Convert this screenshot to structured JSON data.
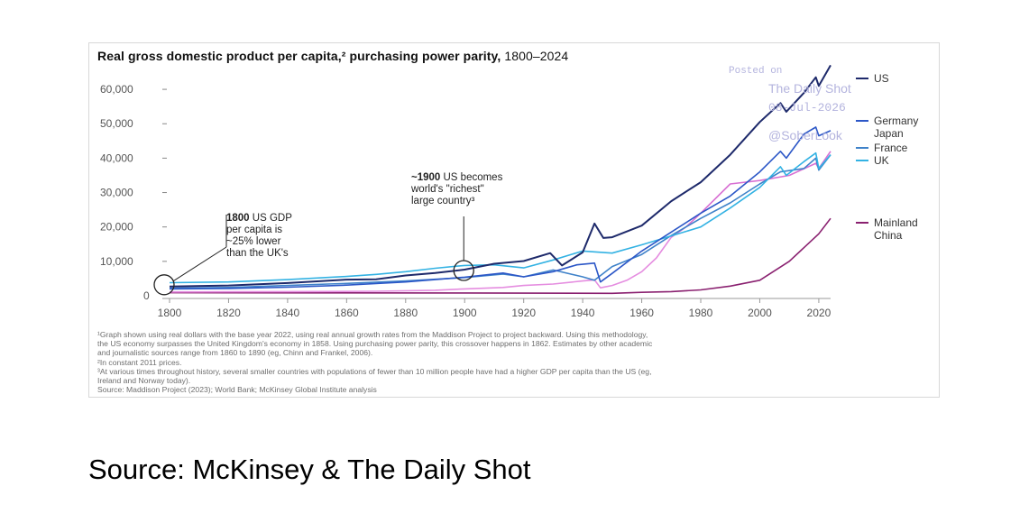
{
  "figure": {
    "title_bold": "Real gross domestic product per capita,² purchasing power parity,",
    "title_light": " 1800–2024",
    "footnotes": [
      "¹Graph shown using real dollars with the base year 2022, using real annual growth rates from the Maddison Project to project backward. Using this methodology,",
      "  the US economy surpasses the United Kingdom's economy in 1858. Using purchasing power parity, this crossover happens in 1862. Estimates by other academic",
      "  and journalistic sources range from 1860 to 1890 (eg, Chinn and Frankel, 2006).",
      "²In constant 2011 prices.",
      "³At various times throughout history, several smaller countries with populations of fewer than 10 million people have had a higher GDP per capita than the US (eg,",
      "  Ireland and Norway today).",
      "  Source: Maddison Project (2023); World Bank; McKinsey Global Institute analysis"
    ]
  },
  "watermark": {
    "line1": "Posted on",
    "line2": "The Daily Shot",
    "line3": "08-Jul-2026",
    "line4": "@SoberLook"
  },
  "caption": "Source: McKinsey & The Daily Shot",
  "colors": {
    "US": "#1e2a6b",
    "Germany": "#2c57c7",
    "Japan": "#1d3a99",
    "France": "#3f82c9",
    "UK": "#33b2e3",
    "China": "#8a2170",
    "Japan_early": "#e58de0"
  },
  "chart_data": {
    "type": "line",
    "title": "Real gross domestic product per capita,² purchasing power parity, 1800–2024",
    "xlim": [
      1800,
      2024
    ],
    "ylim": [
      0,
      65000
    ],
    "x_ticks": [
      "1800",
      "1820",
      "1840",
      "1860",
      "1880",
      "1900",
      "1920",
      "1940",
      "1960",
      "1980",
      "2000",
      "2020"
    ],
    "y_ticks": [
      "0",
      "10,000",
      "20,000",
      "30,000",
      "40,000",
      "50,000",
      "60,000"
    ],
    "y_tick_values": [
      0,
      10000,
      20000,
      30000,
      40000,
      50000,
      60000
    ],
    "grid": false,
    "legend_position": "right",
    "legend": [
      {
        "label": "US",
        "series": "US"
      },
      {
        "label": "Germany",
        "series": "Germany"
      },
      {
        "label": "Japan",
        "series": "Japan"
      },
      {
        "label": "France",
        "series": "France"
      },
      {
        "label": "UK",
        "series": "UK"
      },
      {
        "label": "Mainland China",
        "series": "China"
      }
    ],
    "series": [
      {
        "name": "US",
        "x": [
          1800,
          1820,
          1840,
          1860,
          1870,
          1880,
          1890,
          1900,
          1910,
          1920,
          1929,
          1933,
          1940,
          1944,
          1947,
          1950,
          1960,
          1970,
          1980,
          1990,
          2000,
          2007,
          2009,
          2015,
          2019,
          2020,
          2024
        ],
        "y": [
          2700,
          3000,
          3700,
          4700,
          4800,
          5900,
          6600,
          7600,
          9300,
          10100,
          12400,
          8800,
          12600,
          21000,
          16800,
          17000,
          20400,
          27500,
          33000,
          41000,
          50500,
          56000,
          53500,
          59000,
          63500,
          61000,
          67000
        ]
      },
      {
        "name": "UK",
        "x": [
          1800,
          1820,
          1840,
          1860,
          1870,
          1880,
          1890,
          1900,
          1910,
          1920,
          1930,
          1940,
          1950,
          1960,
          1970,
          1980,
          1990,
          2000,
          2007,
          2009,
          2015,
          2019,
          2020,
          2024
        ],
        "y": [
          3800,
          4000,
          4700,
          5600,
          6200,
          7000,
          8000,
          8800,
          9000,
          8100,
          10400,
          13000,
          12400,
          14800,
          17400,
          20000,
          25500,
          31500,
          37500,
          35000,
          39000,
          41500,
          37000,
          41000
        ]
      },
      {
        "name": "France",
        "x": [
          1800,
          1820,
          1840,
          1860,
          1880,
          1900,
          1913,
          1920,
          1930,
          1940,
          1944,
          1950,
          1960,
          1970,
          1980,
          1990,
          2000,
          2007,
          2015,
          2019,
          2020,
          2024
        ],
        "y": [
          2200,
          2400,
          3000,
          3600,
          4300,
          5300,
          6300,
          5500,
          7500,
          5500,
          4500,
          8500,
          12000,
          17500,
          22500,
          27000,
          32500,
          36000,
          37000,
          40000,
          36500,
          41000
        ]
      },
      {
        "name": "Germany",
        "x": [
          1800,
          1820,
          1840,
          1860,
          1880,
          1900,
          1913,
          1920,
          1930,
          1938,
          1944,
          1946,
          1950,
          1960,
          1970,
          1980,
          1990,
          2000,
          2007,
          2009,
          2015,
          2019,
          2020,
          2024
        ],
        "y": [
          2000,
          2100,
          2500,
          3100,
          4000,
          5400,
          6600,
          5500,
          7000,
          9000,
          9500,
          4000,
          6500,
          13000,
          18500,
          24000,
          29000,
          36000,
          42000,
          40000,
          47000,
          49000,
          46500,
          48000
        ]
      },
      {
        "name": "Japan",
        "x": [
          1800,
          1840,
          1870,
          1890,
          1900,
          1913,
          1920,
          1930,
          1940,
          1944,
          1946,
          1950,
          1955,
          1960,
          1965,
          1970,
          1975,
          1980,
          1990,
          2000,
          2010,
          2019,
          2020,
          2024
        ],
        "y": [
          1100,
          1200,
          1300,
          1600,
          2000,
          2400,
          3000,
          3400,
          4300,
          4600,
          2300,
          3000,
          4500,
          7000,
          11000,
          17000,
          20000,
          24000,
          32500,
          33500,
          35000,
          38500,
          37000,
          42000
        ]
      },
      {
        "name": "China",
        "x": [
          1800,
          1850,
          1900,
          1950,
          1960,
          1970,
          1980,
          1990,
          2000,
          2010,
          2020,
          2024
        ],
        "y": [
          900,
          850,
          800,
          700,
          1000,
          1200,
          1700,
          2800,
          4500,
          10000,
          18000,
          22500
        ]
      }
    ],
    "annotations": [
      {
        "bold": "1800",
        "lines": [
          "US GDP",
          "per capita is",
          "~25% lower",
          "than the UK's"
        ],
        "x": 1800,
        "y": 3200
      },
      {
        "bold": "~1900",
        "lines": [
          "US becomes",
          "world's \"richest\"",
          "large country³"
        ],
        "x": 1900,
        "y": 7600
      }
    ]
  }
}
